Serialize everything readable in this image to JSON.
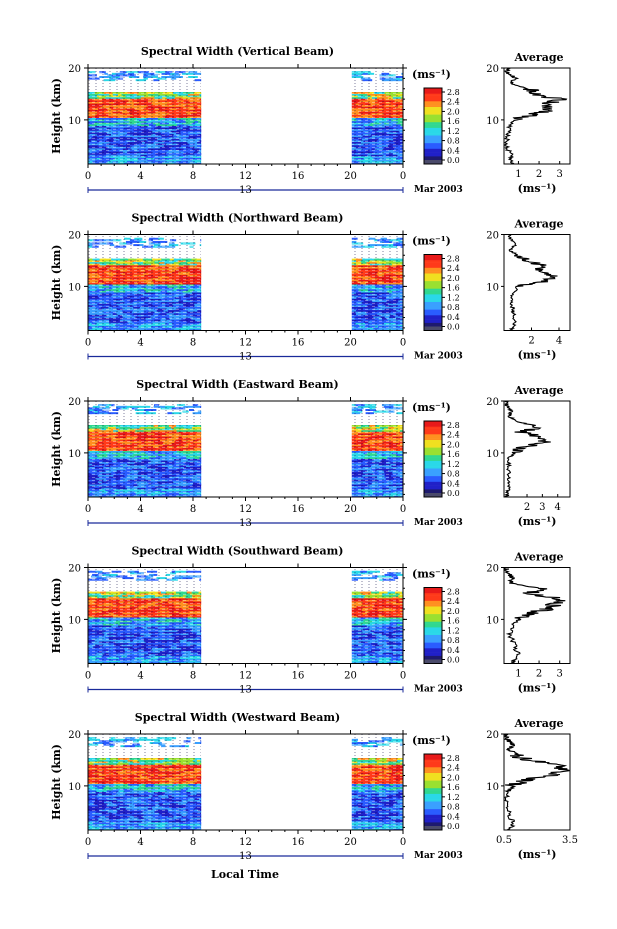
{
  "panels": [
    {
      "title": "Spectral Width (Vertical Beam)",
      "avg_ticks": [
        "1",
        "2",
        "3"
      ],
      "avg_xlim": [
        0.3,
        3.5
      ],
      "profile": "vertical"
    },
    {
      "title": "Spectral Width (Northward Beam)",
      "avg_ticks": [
        "2",
        "4"
      ],
      "avg_xlim": [
        0,
        4.8
      ],
      "profile": "north"
    },
    {
      "title": "Spectral Width (Eastward Beam)",
      "avg_ticks": [
        "2",
        "3",
        "4"
      ],
      "avg_xlim": [
        0.5,
        4.8
      ],
      "profile": "east"
    },
    {
      "title": "Spectral Width (Southward Beam)",
      "avg_ticks": [
        "1",
        "2",
        "3"
      ],
      "avg_xlim": [
        0.3,
        3.5
      ],
      "profile": "south"
    },
    {
      "title": "Spectral Width (Westward Beam)",
      "avg_ticks": [
        "0.5",
        "3.5"
      ],
      "avg_xlim": [
        0.5,
        3.5
      ],
      "profile": "west"
    }
  ],
  "ylabel": "Height (km)",
  "y_ticks": [
    "10",
    "20"
  ],
  "time_ticks": [
    "0",
    "4",
    "8",
    "12",
    "16",
    "20",
    "0"
  ],
  "date_day": "13",
  "date_month": "Mar 2003",
  "colorbar_unit": "(ms⁻¹)",
  "colorbar_ticks": [
    "0.0",
    "0.4",
    "0.8",
    "1.2",
    "1.6",
    "2.0",
    "2.4",
    "2.8"
  ],
  "avg_title": "Average",
  "avg_xlabel": "(ms⁻¹)",
  "xlabel_bottom": "Local Time",
  "colors": {
    "scale": [
      "#1e1a6e",
      "#2020c8",
      "#2a5cff",
      "#3aa0ff",
      "#2ad8e8",
      "#30d890",
      "#9ae030",
      "#f0e020",
      "#ff9020",
      "#ff3a1a",
      "#e81a1a"
    ],
    "ink": "#000000"
  },
  "chart_data": {
    "type": "heatmap",
    "variable": "Spectral Width",
    "x_label": "Local Time",
    "x_range_hours": [
      0,
      24
    ],
    "data_gap_hours": [
      8.6,
      20.1
    ],
    "y_label": "Height (km)",
    "y_range_km": [
      1.5,
      20
    ],
    "value_range": [
      0.0,
      2.8
    ],
    "colorbar_ticks": [
      0.0,
      0.4,
      0.8,
      1.2,
      1.6,
      2.0,
      2.4,
      2.8
    ],
    "beams": [
      "Vertical",
      "Northward",
      "Eastward",
      "Southward",
      "Westward"
    ],
    "average_profiles": {
      "vertical": [
        [
          1.5,
          0.6
        ],
        [
          3,
          0.7
        ],
        [
          5,
          0.4
        ],
        [
          7,
          0.5
        ],
        [
          9,
          0.6
        ],
        [
          10,
          0.8
        ],
        [
          11,
          1.6
        ],
        [
          12,
          2.6
        ],
        [
          13,
          2.3
        ],
        [
          14,
          3.1
        ],
        [
          15,
          1.7
        ],
        [
          16,
          1.5
        ],
        [
          17,
          0.6
        ],
        [
          18,
          0.9
        ],
        [
          19,
          0.5
        ],
        [
          20,
          0.4
        ]
      ],
      "north": [
        [
          1.5,
          0.5
        ],
        [
          3,
          0.8
        ],
        [
          5,
          0.7
        ],
        [
          6,
          0.6
        ],
        [
          8,
          0.5
        ],
        [
          10,
          1.0
        ],
        [
          11,
          3.0
        ],
        [
          12,
          3.6
        ],
        [
          13,
          2.5
        ],
        [
          14,
          2.8
        ],
        [
          15,
          1.6
        ],
        [
          16,
          1.0
        ],
        [
          17,
          0.4
        ],
        [
          18,
          0.8
        ],
        [
          19,
          0.5
        ],
        [
          20,
          0.4
        ]
      ],
      "east": [
        [
          1.5,
          0.7
        ],
        [
          3,
          0.8
        ],
        [
          5,
          0.8
        ],
        [
          7,
          0.8
        ],
        [
          9,
          0.8
        ],
        [
          10,
          1.2
        ],
        [
          11,
          1.5
        ],
        [
          12,
          3.2
        ],
        [
          13,
          3.0
        ],
        [
          14,
          1.6
        ],
        [
          15,
          2.8
        ],
        [
          16,
          1.4
        ],
        [
          17,
          0.8
        ],
        [
          18,
          1.0
        ],
        [
          19,
          0.7
        ],
        [
          20,
          0.6
        ]
      ],
      "south": [
        [
          1.5,
          0.7
        ],
        [
          3,
          1.0
        ],
        [
          5,
          0.8
        ],
        [
          7,
          0.6
        ],
        [
          9,
          0.7
        ],
        [
          10,
          1.0
        ],
        [
          11,
          1.5
        ],
        [
          12,
          2.4
        ],
        [
          13,
          2.8
        ],
        [
          14,
          3.0
        ],
        [
          15,
          1.5
        ],
        [
          16,
          2.0
        ],
        [
          17,
          0.6
        ],
        [
          18,
          0.7
        ],
        [
          19,
          0.5
        ],
        [
          20,
          0.4
        ]
      ],
      "west": [
        [
          1.5,
          0.8
        ],
        [
          3,
          0.9
        ],
        [
          5,
          0.7
        ],
        [
          7,
          0.6
        ],
        [
          9,
          0.7
        ],
        [
          10,
          0.9
        ],
        [
          11,
          1.3
        ],
        [
          12,
          2.6
        ],
        [
          13,
          3.2
        ],
        [
          14,
          3.1
        ],
        [
          15,
          1.5
        ],
        [
          16,
          1.1
        ],
        [
          17,
          0.7
        ],
        [
          18,
          0.9
        ],
        [
          19,
          0.6
        ],
        [
          20,
          0.6
        ]
      ]
    }
  }
}
